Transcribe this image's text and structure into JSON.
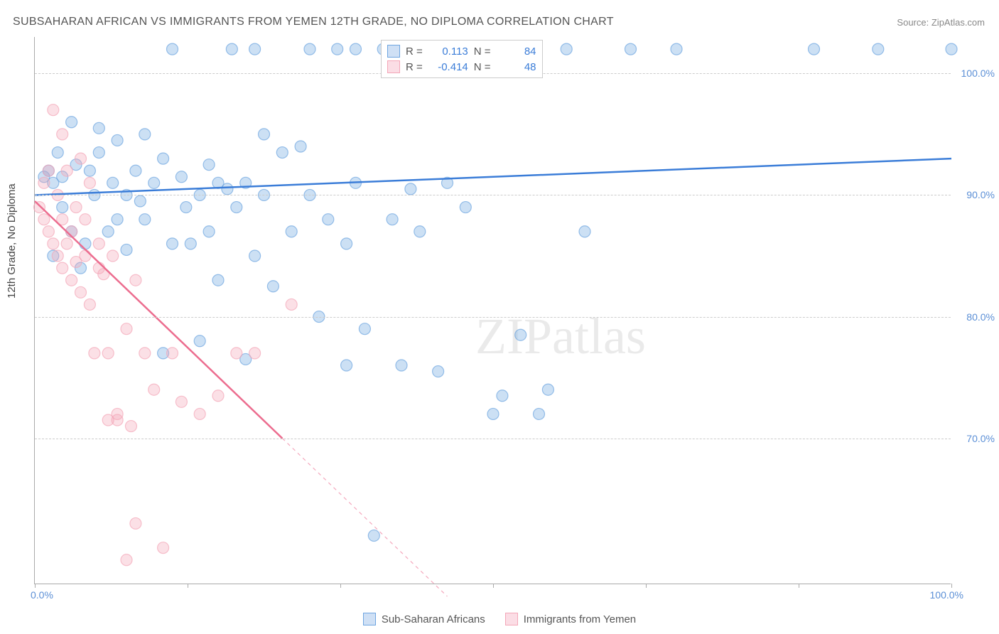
{
  "title": "SUBSAHARAN AFRICAN VS IMMIGRANTS FROM YEMEN 12TH GRADE, NO DIPLOMA CORRELATION CHART",
  "source_label": "Source:",
  "source_name": "ZipAtlas.com",
  "y_axis_label": "12th Grade, No Diploma",
  "watermark": "ZIPatlas",
  "chart": {
    "type": "scatter",
    "xlim": [
      0,
      100
    ],
    "ylim": [
      58,
      103
    ],
    "y_ticks": [
      70,
      80,
      90,
      100
    ],
    "y_tick_labels": [
      "70.0%",
      "80.0%",
      "90.0%",
      "100.0%"
    ],
    "x_tick_positions": [
      0,
      16.7,
      33.3,
      50,
      66.7,
      83.3,
      100
    ],
    "x_start_label": "0.0%",
    "x_end_label": "100.0%",
    "grid_color": "#cccccc",
    "background": "#ffffff",
    "marker_radius": 8,
    "marker_opacity": 0.35,
    "marker_stroke_opacity": 0.7,
    "line_width": 2.5,
    "series": [
      {
        "name": "Sub-Saharan Africans",
        "color": "#6ea5e0",
        "line_color": "#3b7dd8",
        "R": "0.113",
        "N": "84",
        "trend": {
          "x1": 0,
          "y1": 90,
          "x2": 100,
          "y2": 93,
          "dash_from_x": 101
        },
        "points": [
          [
            1,
            91.5
          ],
          [
            1.5,
            92
          ],
          [
            2,
            91
          ],
          [
            2,
            85
          ],
          [
            2.5,
            93.5
          ],
          [
            3,
            89
          ],
          [
            3,
            91.5
          ],
          [
            4,
            87
          ],
          [
            4,
            96
          ],
          [
            4.5,
            92.5
          ],
          [
            5,
            84
          ],
          [
            5.5,
            86
          ],
          [
            6,
            92
          ],
          [
            6.5,
            90
          ],
          [
            7,
            93.5
          ],
          [
            7,
            95.5
          ],
          [
            8,
            87
          ],
          [
            8.5,
            91
          ],
          [
            9,
            94.5
          ],
          [
            9,
            88
          ],
          [
            10,
            85.5
          ],
          [
            10,
            90
          ],
          [
            11,
            92
          ],
          [
            11.5,
            89.5
          ],
          [
            12,
            95
          ],
          [
            12,
            88
          ],
          [
            13,
            91
          ],
          [
            14,
            77
          ],
          [
            14,
            93
          ],
          [
            15,
            86
          ],
          [
            15,
            102
          ],
          [
            16,
            91.5
          ],
          [
            16.5,
            89
          ],
          [
            17,
            86
          ],
          [
            18,
            90
          ],
          [
            18,
            78
          ],
          [
            19,
            92.5
          ],
          [
            19,
            87
          ],
          [
            20,
            91
          ],
          [
            20,
            83
          ],
          [
            21,
            90.5
          ],
          [
            21.5,
            102
          ],
          [
            22,
            89
          ],
          [
            23,
            91
          ],
          [
            23,
            76.5
          ],
          [
            24,
            85
          ],
          [
            24,
            102
          ],
          [
            25,
            90
          ],
          [
            25,
            95
          ],
          [
            26,
            82.5
          ],
          [
            27,
            93.5
          ],
          [
            28,
            87
          ],
          [
            29,
            94
          ],
          [
            30,
            90
          ],
          [
            30,
            102
          ],
          [
            31,
            80
          ],
          [
            32,
            88
          ],
          [
            33,
            102
          ],
          [
            34,
            86
          ],
          [
            34,
            76
          ],
          [
            35,
            91
          ],
          [
            35,
            102
          ],
          [
            36,
            79
          ],
          [
            37,
            62
          ],
          [
            38,
            102
          ],
          [
            39,
            88
          ],
          [
            40,
            76
          ],
          [
            41,
            90.5
          ],
          [
            42,
            87
          ],
          [
            44,
            75.5
          ],
          [
            45,
            91
          ],
          [
            47,
            89
          ],
          [
            50,
            72
          ],
          [
            51,
            73.5
          ],
          [
            53,
            78.5
          ],
          [
            55,
            72
          ],
          [
            56,
            74
          ],
          [
            58,
            102
          ],
          [
            60,
            87
          ],
          [
            65,
            102
          ],
          [
            70,
            102
          ],
          [
            85,
            102
          ],
          [
            92,
            102
          ],
          [
            100,
            102
          ]
        ]
      },
      {
        "name": "Immigrants from Yemen",
        "color": "#f4a6b8",
        "line_color": "#ec6d8f",
        "R": "-0.414",
        "N": "48",
        "trend": {
          "x1": 0,
          "y1": 89.5,
          "x2": 27,
          "y2": 70,
          "dash_from_x": 27,
          "dash_x2": 45,
          "dash_y2": 57
        },
        "points": [
          [
            0.5,
            89
          ],
          [
            1,
            91
          ],
          [
            1,
            88
          ],
          [
            1.5,
            87
          ],
          [
            1.5,
            92
          ],
          [
            2,
            86
          ],
          [
            2,
            97
          ],
          [
            2.5,
            85
          ],
          [
            2.5,
            90
          ],
          [
            3,
            84
          ],
          [
            3,
            88
          ],
          [
            3,
            95
          ],
          [
            3.5,
            86
          ],
          [
            3.5,
            92
          ],
          [
            4,
            87
          ],
          [
            4,
            83
          ],
          [
            4.5,
            89
          ],
          [
            4.5,
            84.5
          ],
          [
            5,
            93
          ],
          [
            5,
            82
          ],
          [
            5.5,
            88
          ],
          [
            5.5,
            85
          ],
          [
            6,
            81
          ],
          [
            6,
            91
          ],
          [
            6.5,
            77
          ],
          [
            7,
            84
          ],
          [
            7,
            86
          ],
          [
            7.5,
            83.5
          ],
          [
            8,
            71.5
          ],
          [
            8,
            77
          ],
          [
            8.5,
            85
          ],
          [
            9,
            72
          ],
          [
            9,
            71.5
          ],
          [
            10,
            79
          ],
          [
            10,
            60
          ],
          [
            10.5,
            71
          ],
          [
            11,
            63
          ],
          [
            11,
            83
          ],
          [
            12,
            77
          ],
          [
            13,
            74
          ],
          [
            14,
            61
          ],
          [
            15,
            77
          ],
          [
            16,
            73
          ],
          [
            18,
            72
          ],
          [
            20,
            73.5
          ],
          [
            22,
            77
          ],
          [
            24,
            77
          ],
          [
            28,
            81
          ]
        ]
      }
    ]
  },
  "legend_top": {
    "r_label": "R =",
    "n_label": "N ="
  },
  "legend_bottom": [
    {
      "label": "Sub-Saharan Africans",
      "fill": "#cfe0f5",
      "border": "#6ea5e0"
    },
    {
      "label": "Immigrants from Yemen",
      "fill": "#fbdde5",
      "border": "#f4a6b8"
    }
  ]
}
